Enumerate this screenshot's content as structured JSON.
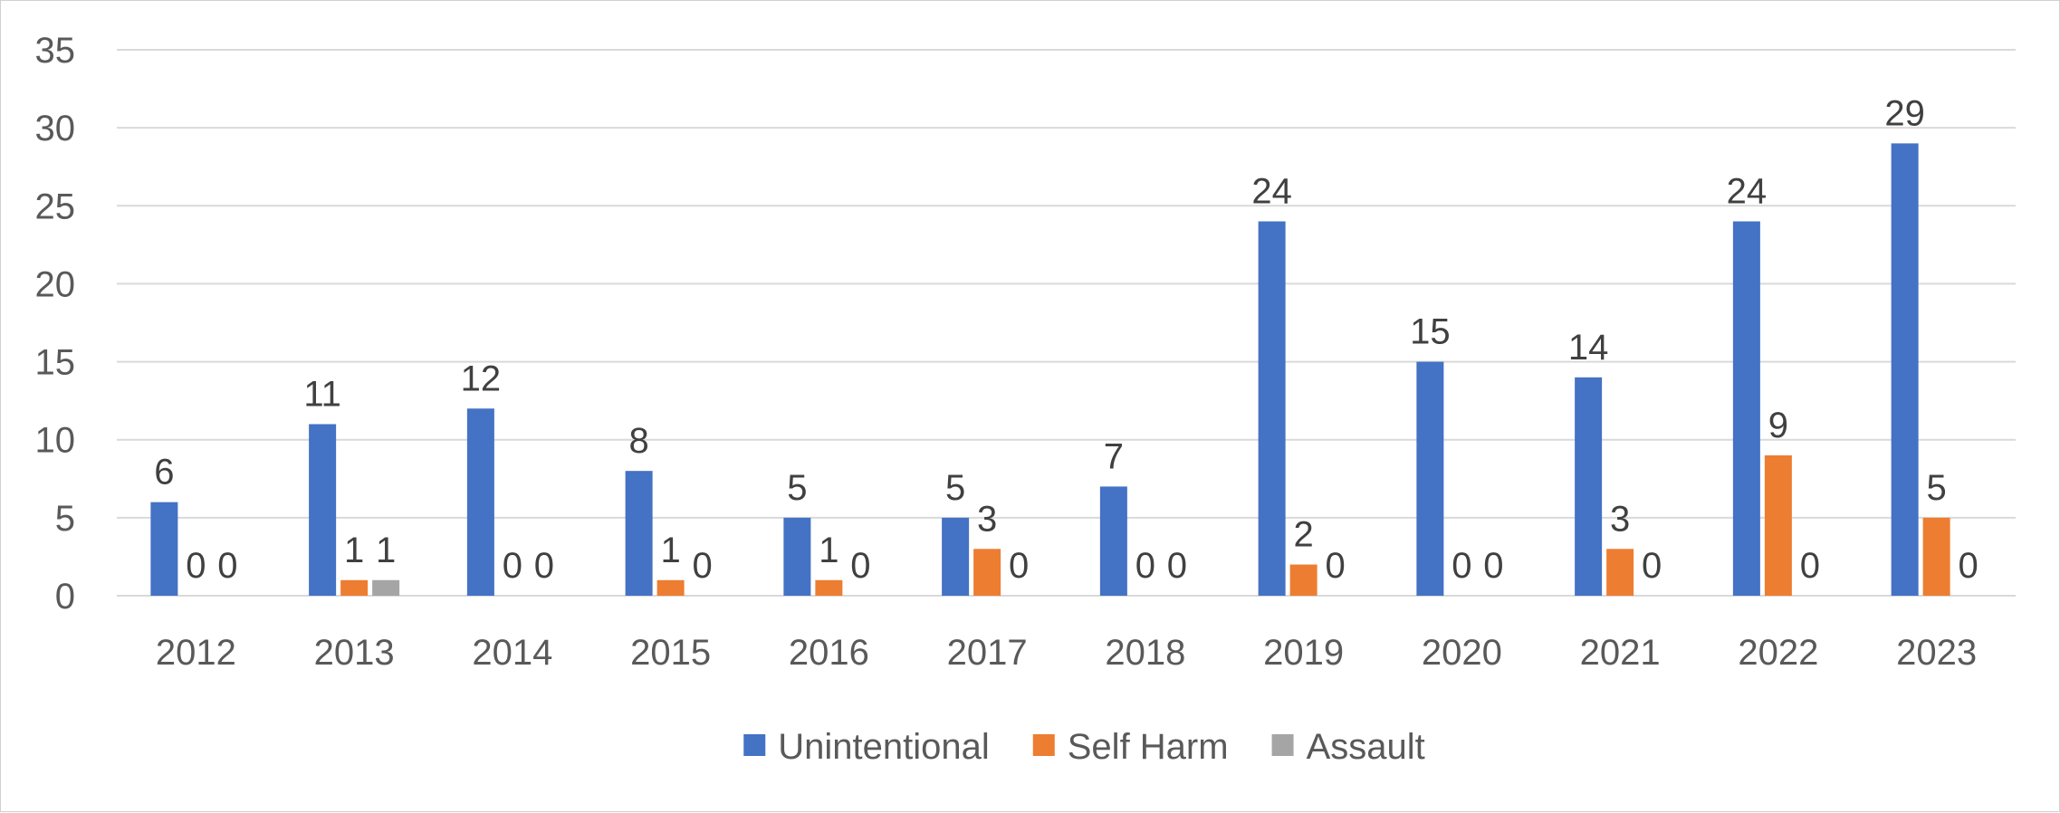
{
  "chart_data": {
    "type": "bar",
    "categories": [
      "2012",
      "2013",
      "2014",
      "2015",
      "2016",
      "2017",
      "2018",
      "2019",
      "2020",
      "2021",
      "2022",
      "2023"
    ],
    "series": [
      {
        "name": "Unintentional",
        "color": "#4472C4",
        "values": [
          6,
          11,
          12,
          8,
          5,
          5,
          7,
          24,
          15,
          14,
          24,
          29
        ]
      },
      {
        "name": "Self Harm",
        "color": "#ED7D31",
        "values": [
          0,
          1,
          0,
          1,
          1,
          3,
          0,
          2,
          0,
          3,
          9,
          5
        ]
      },
      {
        "name": "Assault",
        "color": "#A5A5A5",
        "values": [
          0,
          1,
          0,
          0,
          0,
          0,
          0,
          0,
          0,
          0,
          0,
          0
        ]
      }
    ],
    "y_ticks": [
      "0",
      "5",
      "10",
      "15",
      "20",
      "25",
      "30",
      "35"
    ],
    "ylim": [
      0,
      35
    ],
    "grid": true,
    "legend_position": "bottom",
    "data_labels": true,
    "gridline_color": "#D9D9D9"
  }
}
